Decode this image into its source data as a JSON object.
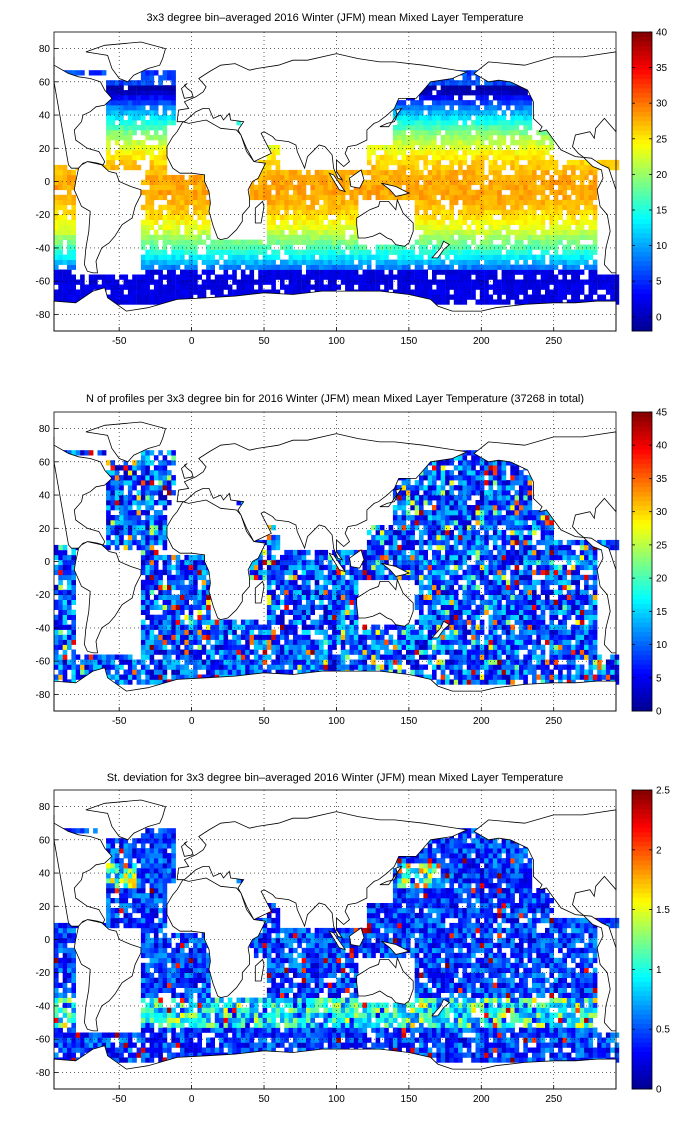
{
  "colormap": [
    "#00008f",
    "#0000ff",
    "#0080ff",
    "#00ffff",
    "#80ff80",
    "#ffff00",
    "#ff8000",
    "#ff0000",
    "#800000"
  ],
  "chart_data": [
    {
      "type": "heatmap",
      "title": "3x3 degree bin–averaged 2016 Winter (JFM) mean Mixed Layer Temperature",
      "xlim": [
        -95,
        293
      ],
      "ylim": [
        -90,
        90
      ],
      "xticks": [
        -50,
        0,
        50,
        100,
        150,
        200,
        250
      ],
      "yticks": [
        -80,
        -60,
        -40,
        -20,
        0,
        20,
        40,
        60,
        80
      ],
      "grid": true,
      "colorbar": {
        "min": -2,
        "max": 40,
        "ticks": [
          0,
          5,
          10,
          15,
          20,
          25,
          30,
          35,
          40
        ]
      },
      "field": "temperature"
    },
    {
      "type": "heatmap",
      "title": "N of profiles per 3x3 degree bin for 2016 Winter (JFM) mean Mixed Layer Temperature  (37268 in total)",
      "xlim": [
        -95,
        293
      ],
      "ylim": [
        -90,
        90
      ],
      "xticks": [
        -50,
        0,
        50,
        100,
        150,
        200,
        250
      ],
      "yticks": [
        -80,
        -60,
        -40,
        -20,
        0,
        20,
        40,
        60,
        80
      ],
      "grid": true,
      "colorbar": {
        "min": 0,
        "max": 45,
        "ticks": [
          0,
          5,
          10,
          15,
          20,
          25,
          30,
          35,
          40,
          45
        ]
      },
      "field": "count"
    },
    {
      "type": "heatmap",
      "title": "St. deviation for 3x3 degree bin–averaged 2016 Winter (JFM) mean Mixed Layer Temperature",
      "xlim": [
        -95,
        293
      ],
      "ylim": [
        -90,
        90
      ],
      "xticks": [
        -50,
        0,
        50,
        100,
        150,
        200,
        250
      ],
      "yticks": [
        -80,
        -60,
        -40,
        -20,
        0,
        20,
        40,
        60,
        80
      ],
      "grid": true,
      "colorbar": {
        "min": 0,
        "max": 2.5,
        "ticks": [
          0,
          0.5,
          1,
          1.5,
          2,
          2.5
        ]
      },
      "field": "std"
    }
  ]
}
